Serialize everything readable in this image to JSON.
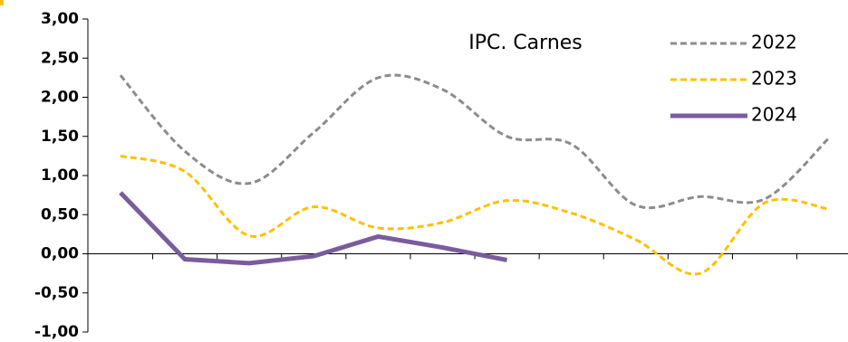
{
  "chart_data": {
    "type": "line",
    "title": "IPC. Carnes",
    "categories": [
      null,
      null,
      null,
      null,
      null,
      null,
      null,
      null,
      null,
      null,
      null,
      null
    ],
    "series": [
      {
        "name": "2022",
        "color": "#8c8c8c",
        "dash": true,
        "smooth": true,
        "values": [
          2.28,
          1.31,
          0.9,
          1.55,
          2.25,
          2.1,
          1.5,
          1.4,
          0.62,
          0.73,
          0.7,
          1.48
        ]
      },
      {
        "name": "2023",
        "color": "#ffc000",
        "dash": true,
        "smooth": true,
        "values": [
          1.25,
          1.05,
          0.23,
          0.6,
          0.33,
          0.4,
          0.68,
          0.52,
          0.18,
          -0.25,
          0.65,
          0.57
        ]
      },
      {
        "name": "2024",
        "color": "#7a5c9e",
        "dash": false,
        "smooth": false,
        "values": [
          0.78,
          -0.07,
          -0.12,
          -0.03,
          0.22,
          0.08,
          -0.08,
          null,
          null,
          null,
          null,
          null
        ]
      }
    ],
    "ylim": [
      -1,
      3
    ],
    "yticks": [
      {
        "value": -1,
        "label": "-1,00"
      },
      {
        "value": -0.5,
        "label": "-0,50"
      },
      {
        "value": 0,
        "label": "0,00"
      },
      {
        "value": 0.5,
        "label": "0,50"
      },
      {
        "value": 1,
        "label": "1,00"
      },
      {
        "value": 1.5,
        "label": "1,50"
      },
      {
        "value": 2,
        "label": "2,00"
      },
      {
        "value": 2.5,
        "label": "2,50"
      },
      {
        "value": 3,
        "label": "3,00"
      }
    ],
    "legend": "upper-right"
  }
}
